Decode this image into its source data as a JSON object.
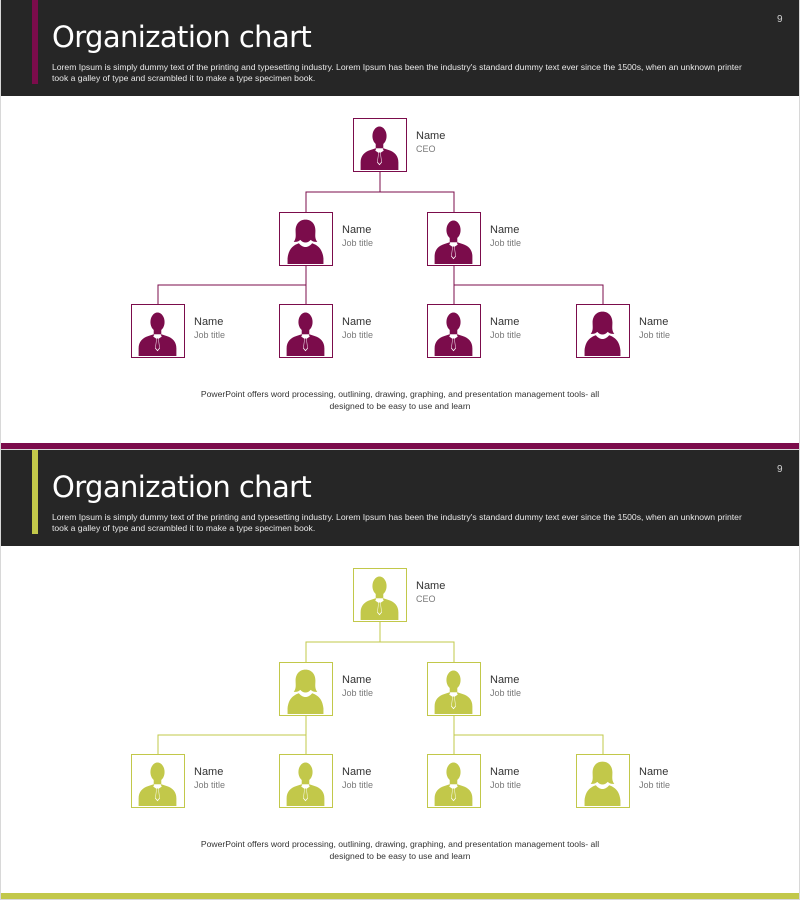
{
  "slides": [
    {
      "page_number": "9",
      "title": "Organization chart",
      "subtitle": "Lorem Ipsum is simply dummy text of the printing and typesetting industry. Lorem Ipsum has been the industry's standard dummy text ever since the 1500s, when an unknown printer took a galley of type and scrambled it to make a type specimen book.",
      "accent_color": "#7b0c4b",
      "nodes": [
        {
          "name": "Name",
          "role": "CEO",
          "icon": "male-silhouette-icon"
        },
        {
          "name": "Name",
          "role": "Job title",
          "icon": "female-silhouette-icon"
        },
        {
          "name": "Name",
          "role": "Job title",
          "icon": "male-silhouette-icon"
        },
        {
          "name": "Name",
          "role": "Job title",
          "icon": "male-silhouette-icon"
        },
        {
          "name": "Name",
          "role": "Job title",
          "icon": "male-silhouette-icon"
        },
        {
          "name": "Name",
          "role": "Job title",
          "icon": "male-silhouette-icon"
        },
        {
          "name": "Name",
          "role": "Job title",
          "icon": "female-silhouette-icon"
        }
      ],
      "footnote": "PowerPoint offers word processing, outlining, drawing, graphing, and presentation management tools- all designed to be easy to use and learn"
    },
    {
      "page_number": "9",
      "title": "Organization chart",
      "subtitle": "Lorem Ipsum is simply dummy text of the printing and typesetting industry. Lorem Ipsum has been the industry's standard dummy text ever since the 1500s, when an unknown printer took a galley of type and scrambled it to make a type specimen book.",
      "accent_color": "#c2c84a",
      "nodes": [
        {
          "name": "Name",
          "role": "CEO",
          "icon": "male-silhouette-icon"
        },
        {
          "name": "Name",
          "role": "Job title",
          "icon": "female-silhouette-icon"
        },
        {
          "name": "Name",
          "role": "Job title",
          "icon": "male-silhouette-icon"
        },
        {
          "name": "Name",
          "role": "Job title",
          "icon": "male-silhouette-icon"
        },
        {
          "name": "Name",
          "role": "Job title",
          "icon": "male-silhouette-icon"
        },
        {
          "name": "Name",
          "role": "Job title",
          "icon": "male-silhouette-icon"
        },
        {
          "name": "Name",
          "role": "Job title",
          "icon": "female-silhouette-icon"
        }
      ],
      "footnote": "PowerPoint offers word processing, outlining, drawing, graphing, and presentation management tools- all designed to be easy to use and learn"
    }
  ]
}
